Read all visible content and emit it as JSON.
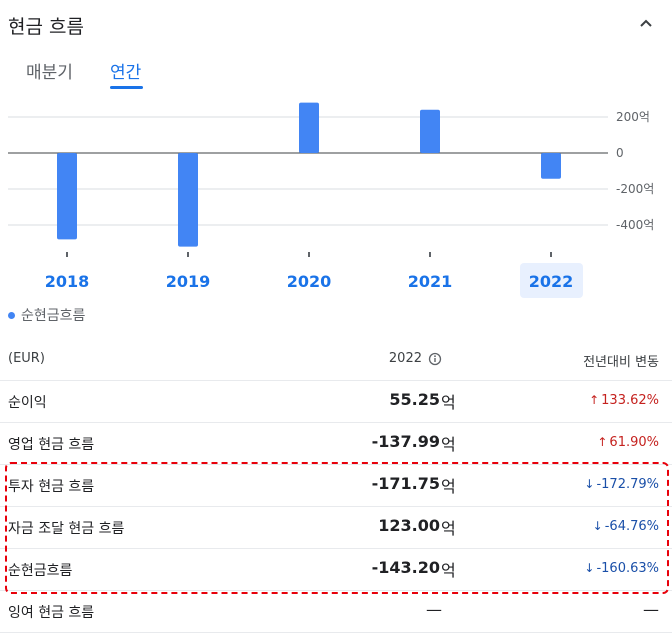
{
  "header": {
    "title": "현금 흐름"
  },
  "tabs": [
    {
      "label": "매분기"
    },
    {
      "label": "연간"
    }
  ],
  "chart_data": {
    "type": "bar",
    "categories": [
      "2018",
      "2019",
      "2020",
      "2021",
      "2022"
    ],
    "series": [
      {
        "name": "순현금흐름",
        "values": [
          -480,
          -520,
          280,
          240,
          -143.2
        ]
      }
    ],
    "y_ticks": [
      "200억",
      "0",
      "-200억",
      "-400억"
    ],
    "ylim": [
      -550,
      330
    ],
    "selected_category": "2022",
    "colors": {
      "bar": "#4285f4",
      "label": "#1a73e8",
      "selected_bg": "#e8f0fe"
    }
  },
  "legend": {
    "label": "순현금흐름"
  },
  "table": {
    "header": {
      "currency": "(EUR)",
      "year": "2022",
      "change": "전년대비 변동"
    },
    "rows": [
      {
        "label": "순이익",
        "value": "55.25",
        "unit": "억",
        "change": "133.62%",
        "dir": "up"
      },
      {
        "label": "영업 현금 흐름",
        "value": "-137.99",
        "unit": "억",
        "change": "61.90%",
        "dir": "up"
      },
      {
        "label": "투자 현금 흐름",
        "value": "-171.75",
        "unit": "억",
        "change": "-172.79%",
        "dir": "down"
      },
      {
        "label": "자금 조달 현금 흐름",
        "value": "123.00",
        "unit": "억",
        "change": "-64.76%",
        "dir": "down"
      },
      {
        "label": "순현금흐름",
        "value": "-143.20",
        "unit": "억",
        "change": "-160.63%",
        "dir": "down"
      },
      {
        "label": "잉여 현금 흐름",
        "value": "—",
        "unit": "",
        "change": "—",
        "dir": "none"
      }
    ]
  }
}
